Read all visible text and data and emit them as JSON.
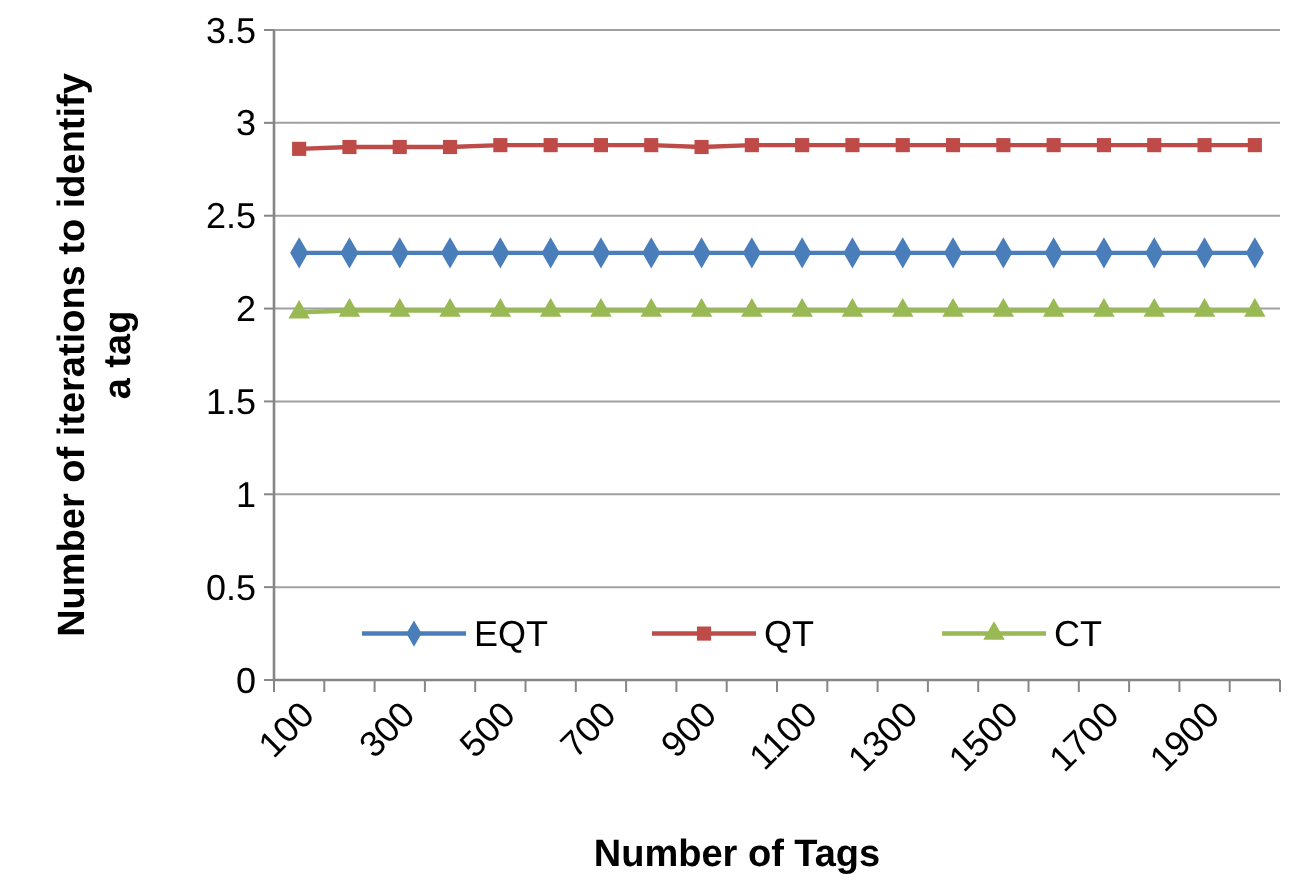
{
  "chart_data": {
    "type": "line",
    "xlabel": "Number of Tags",
    "ylabel": "Number of iterations to identify a tag",
    "categories": [
      "100",
      null,
      "300",
      null,
      "500",
      null,
      "700",
      null,
      "900",
      null,
      "1100",
      null,
      "1300",
      null,
      "1500",
      null,
      "1700",
      null,
      "1900",
      null
    ],
    "series": [
      {
        "name": "EQT",
        "color": "#4a7ebb",
        "marker": "diamond",
        "values": [
          2.3,
          2.3,
          2.3,
          2.3,
          2.3,
          2.3,
          2.3,
          2.3,
          2.3,
          2.3,
          2.3,
          2.3,
          2.3,
          2.3,
          2.3,
          2.3,
          2.3,
          2.3,
          2.3,
          2.3
        ]
      },
      {
        "name": "QT",
        "color": "#be4b48",
        "marker": "square",
        "values": [
          2.86,
          2.87,
          2.87,
          2.87,
          2.88,
          2.88,
          2.88,
          2.88,
          2.87,
          2.88,
          2.88,
          2.88,
          2.88,
          2.88,
          2.88,
          2.88,
          2.88,
          2.88,
          2.88,
          2.88
        ]
      },
      {
        "name": "CT",
        "color": "#98b954",
        "marker": "triangle",
        "values": [
          1.98,
          1.99,
          1.99,
          1.99,
          1.99,
          1.99,
          1.99,
          1.99,
          1.99,
          1.99,
          1.99,
          1.99,
          1.99,
          1.99,
          1.99,
          1.99,
          1.99,
          1.99,
          1.99,
          1.99
        ]
      }
    ],
    "ylim": [
      0,
      3.5
    ],
    "yticks": [
      0,
      0.5,
      1,
      1.5,
      2,
      2.5,
      3,
      3.5
    ],
    "grid": "y",
    "legend": "bottom"
  }
}
